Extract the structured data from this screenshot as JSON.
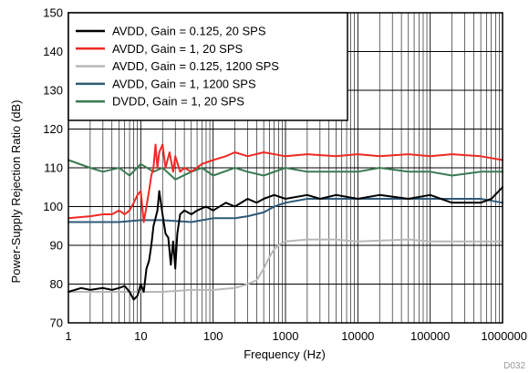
{
  "chart_data": {
    "type": "line",
    "xlabel": "Frequency (Hz)",
    "ylabel": "Power-Supply Rejection Ratio (dB)",
    "xscale": "log",
    "xlim": [
      1,
      1000000
    ],
    "ylim": [
      70,
      150
    ],
    "x_ticks": [
      "1",
      "10",
      "100",
      "1000",
      "10000",
      "100000",
      "1000000"
    ],
    "y_ticks": [
      "70",
      "80",
      "90",
      "100",
      "110",
      "120",
      "130",
      "140",
      "150"
    ],
    "grid": true,
    "legend_position": "top-left",
    "footnote": "D032",
    "series": [
      {
        "name": "AVDD, Gain = 0.125, 20 SPS",
        "color": "#000000",
        "points": [
          [
            1,
            78
          ],
          [
            1.5,
            79
          ],
          [
            2,
            78.5
          ],
          [
            3,
            79
          ],
          [
            4,
            78.5
          ],
          [
            5,
            79
          ],
          [
            6,
            79.5
          ],
          [
            7,
            78
          ],
          [
            8,
            76
          ],
          [
            9,
            77
          ],
          [
            10,
            80
          ],
          [
            11,
            78
          ],
          [
            12,
            84
          ],
          [
            13,
            86
          ],
          [
            14,
            90
          ],
          [
            15,
            95
          ],
          [
            16,
            97
          ],
          [
            17,
            99
          ],
          [
            18,
            104
          ],
          [
            20,
            98
          ],
          [
            22,
            93
          ],
          [
            24,
            92
          ],
          [
            26,
            85
          ],
          [
            28,
            91
          ],
          [
            30,
            84
          ],
          [
            32,
            93
          ],
          [
            35,
            98
          ],
          [
            40,
            99
          ],
          [
            50,
            98
          ],
          [
            60,
            99
          ],
          [
            80,
            100
          ],
          [
            100,
            99
          ],
          [
            150,
            101
          ],
          [
            200,
            100
          ],
          [
            300,
            102
          ],
          [
            400,
            101
          ],
          [
            500,
            102
          ],
          [
            700,
            103
          ],
          [
            1000,
            102
          ],
          [
            2000,
            103
          ],
          [
            3000,
            102
          ],
          [
            5000,
            103
          ],
          [
            10000,
            102
          ],
          [
            20000,
            103
          ],
          [
            50000,
            102
          ],
          [
            100000,
            103
          ],
          [
            200000,
            101
          ],
          [
            500000,
            101
          ],
          [
            700000,
            102
          ],
          [
            1000000,
            105
          ]
        ]
      },
      {
        "name": "AVDD, Gain = 1, 20 SPS",
        "color": "#ee2a24",
        "points": [
          [
            1,
            97
          ],
          [
            2,
            97.5
          ],
          [
            3,
            98
          ],
          [
            4,
            98
          ],
          [
            5,
            99
          ],
          [
            6,
            98
          ],
          [
            7,
            99
          ],
          [
            8,
            101
          ],
          [
            9,
            103
          ],
          [
            10,
            104
          ],
          [
            11,
            96
          ],
          [
            12,
            100
          ],
          [
            13,
            104
          ],
          [
            14,
            108
          ],
          [
            15,
            110
          ],
          [
            16,
            116
          ],
          [
            17,
            110
          ],
          [
            18,
            114
          ],
          [
            20,
            116
          ],
          [
            22,
            110
          ],
          [
            25,
            114
          ],
          [
            28,
            109
          ],
          [
            30,
            113
          ],
          [
            35,
            109
          ],
          [
            40,
            110
          ],
          [
            50,
            109
          ],
          [
            70,
            111
          ],
          [
            100,
            112
          ],
          [
            150,
            113
          ],
          [
            200,
            114
          ],
          [
            300,
            113
          ],
          [
            500,
            114
          ],
          [
            1000,
            113
          ],
          [
            2000,
            113.5
          ],
          [
            5000,
            113
          ],
          [
            10000,
            113.5
          ],
          [
            20000,
            113
          ],
          [
            50000,
            113.5
          ],
          [
            100000,
            113
          ],
          [
            200000,
            113.5
          ],
          [
            500000,
            113
          ],
          [
            1000000,
            112
          ]
        ]
      },
      {
        "name": "AVDD, Gain = 0.125, 1200 SPS",
        "color": "#b8b8b8",
        "points": [
          [
            1,
            78
          ],
          [
            2,
            78
          ],
          [
            5,
            78
          ],
          [
            10,
            78
          ],
          [
            20,
            78
          ],
          [
            50,
            78.5
          ],
          [
            100,
            78.5
          ],
          [
            200,
            79
          ],
          [
            300,
            80
          ],
          [
            400,
            81
          ],
          [
            500,
            84
          ],
          [
            600,
            87
          ],
          [
            700,
            89
          ],
          [
            800,
            90
          ],
          [
            1000,
            91
          ],
          [
            2000,
            91.5
          ],
          [
            5000,
            91.5
          ],
          [
            10000,
            91
          ],
          [
            50000,
            91.5
          ],
          [
            100000,
            91
          ],
          [
            500000,
            91
          ],
          [
            1000000,
            91
          ]
        ]
      },
      {
        "name": "AVDD, Gain = 1, 1200 SPS",
        "color": "#2e5a78",
        "points": [
          [
            1,
            96
          ],
          [
            2,
            96
          ],
          [
            5,
            96
          ],
          [
            10,
            96.5
          ],
          [
            20,
            96.5
          ],
          [
            50,
            96
          ],
          [
            100,
            97
          ],
          [
            200,
            97
          ],
          [
            300,
            97.5
          ],
          [
            500,
            98.5
          ],
          [
            700,
            100
          ],
          [
            1000,
            101
          ],
          [
            2000,
            102
          ],
          [
            5000,
            102
          ],
          [
            10000,
            102
          ],
          [
            50000,
            102
          ],
          [
            100000,
            102
          ],
          [
            500000,
            102
          ],
          [
            1000000,
            101
          ]
        ]
      },
      {
        "name": "DVDD, Gain = 1, 20 SPS",
        "color": "#3a7a52",
        "points": [
          [
            1,
            112
          ],
          [
            2,
            110
          ],
          [
            3,
            109
          ],
          [
            5,
            110
          ],
          [
            7,
            108
          ],
          [
            10,
            111
          ],
          [
            15,
            109
          ],
          [
            20,
            110
          ],
          [
            30,
            107
          ],
          [
            50,
            109
          ],
          [
            70,
            110
          ],
          [
            100,
            108
          ],
          [
            200,
            110
          ],
          [
            300,
            109
          ],
          [
            500,
            108
          ],
          [
            1000,
            110
          ],
          [
            2000,
            109
          ],
          [
            5000,
            109
          ],
          [
            10000,
            109
          ],
          [
            20000,
            110
          ],
          [
            50000,
            109
          ],
          [
            100000,
            109
          ],
          [
            200000,
            108
          ],
          [
            500000,
            109
          ],
          [
            1000000,
            109
          ]
        ]
      }
    ]
  }
}
